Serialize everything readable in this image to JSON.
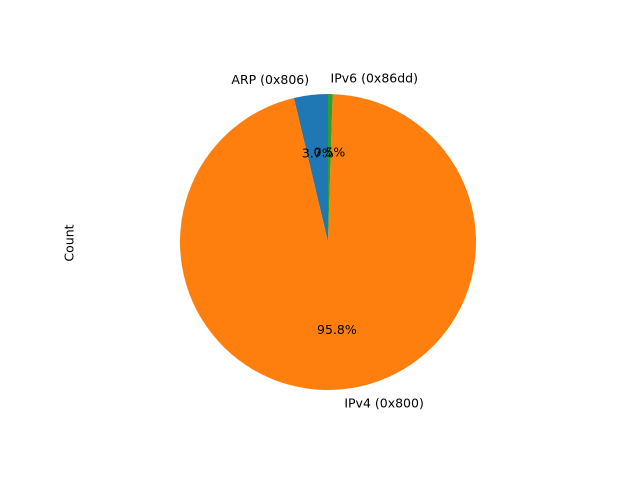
{
  "chart_data": {
    "type": "pie",
    "ylabel": "Count",
    "startangle_deg": 90,
    "direction": "counterclockwise",
    "slices": [
      {
        "label": "ARP (0x806)",
        "percent": 3.7,
        "pct_label": "3.7%",
        "color": "#1f77b4"
      },
      {
        "label": "IPv4 (0x800)",
        "percent": 95.8,
        "pct_label": "95.8%",
        "color": "#ff7f0e"
      },
      {
        "label": "IPv6 (0x86dd)",
        "percent": 0.5,
        "pct_label": "0.5%",
        "color": "#2ca02c"
      }
    ]
  }
}
